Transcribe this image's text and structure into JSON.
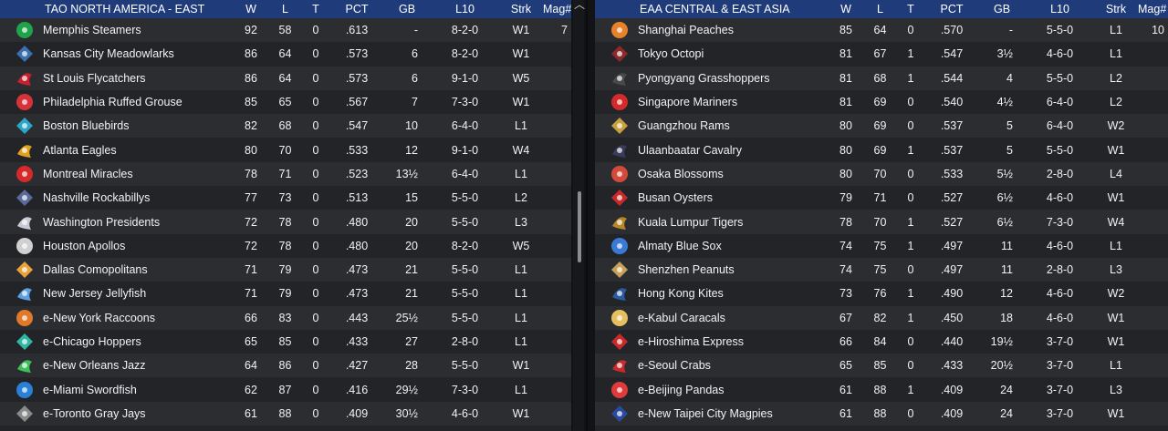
{
  "left": {
    "headers": [
      "TAO NORTH AMERICA - EAST",
      "W",
      "L",
      "T",
      "PCT",
      "GB",
      "L10",
      "Strk",
      "Mag#"
    ],
    "rows": [
      {
        "team": "Memphis Steamers",
        "w": "92",
        "l": "58",
        "t": "0",
        "pct": ".613",
        "gb": "-",
        "l10": "8-2-0",
        "strk": "W1",
        "mag": "7",
        "logo_color": "#1fa34a",
        "logo_icon": "steamer-icon"
      },
      {
        "team": "Kansas City Meadowlarks",
        "w": "86",
        "l": "64",
        "t": "0",
        "pct": ".573",
        "gb": "6",
        "l10": "8-2-0",
        "strk": "W1",
        "mag": "",
        "logo_color": "#3b6fb0",
        "logo_icon": "meadowlark-icon"
      },
      {
        "team": "St Louis Flycatchers",
        "w": "86",
        "l": "64",
        "t": "0",
        "pct": ".573",
        "gb": "6",
        "l10": "9-1-0",
        "strk": "W5",
        "mag": "",
        "logo_color": "#c8202e",
        "logo_icon": "flycatcher-icon"
      },
      {
        "team": "Philadelphia Ruffed Grouse",
        "w": "85",
        "l": "65",
        "t": "0",
        "pct": ".567",
        "gb": "7",
        "l10": "7-3-0",
        "strk": "W1",
        "mag": "",
        "logo_color": "#d6323a",
        "logo_icon": "grouse-icon"
      },
      {
        "team": "Boston Bluebirds",
        "w": "82",
        "l": "68",
        "t": "0",
        "pct": ".547",
        "gb": "10",
        "l10": "6-4-0",
        "strk": "L1",
        "mag": "",
        "logo_color": "#2aa6c8",
        "logo_icon": "bluebird-icon"
      },
      {
        "team": "Atlanta Eagles",
        "w": "80",
        "l": "70",
        "t": "0",
        "pct": ".533",
        "gb": "12",
        "l10": "9-1-0",
        "strk": "W4",
        "mag": "",
        "logo_color": "#e0a020",
        "logo_icon": "eagle-icon"
      },
      {
        "team": "Montreal Miracles",
        "w": "78",
        "l": "71",
        "t": "0",
        "pct": ".523",
        "gb": "13½",
        "l10": "6-4-0",
        "strk": "L1",
        "mag": "",
        "logo_color": "#d42a2a",
        "logo_icon": "m-icon"
      },
      {
        "team": "Nashville Rockabillys",
        "w": "77",
        "l": "73",
        "t": "0",
        "pct": ".513",
        "gb": "15",
        "l10": "5-5-0",
        "strk": "L2",
        "mag": "",
        "logo_color": "#5a6a9a",
        "logo_icon": "guitar-icon"
      },
      {
        "team": "Washington Presidents",
        "w": "72",
        "l": "78",
        "t": "0",
        "pct": ".480",
        "gb": "20",
        "l10": "5-5-0",
        "strk": "L3",
        "mag": "",
        "logo_color": "#c9c9d6",
        "logo_icon": "presidents-icon"
      },
      {
        "team": "Houston Apollos",
        "w": "72",
        "l": "78",
        "t": "0",
        "pct": ".480",
        "gb": "20",
        "l10": "8-2-0",
        "strk": "W5",
        "mag": "",
        "logo_color": "#d0d0d0",
        "logo_icon": "apollo-icon"
      },
      {
        "team": "Dallas Comopolitans",
        "w": "71",
        "l": "79",
        "t": "0",
        "pct": ".473",
        "gb": "21",
        "l10": "5-5-0",
        "strk": "L1",
        "mag": "",
        "logo_color": "#e8a33a",
        "logo_icon": "star-icon"
      },
      {
        "team": "New Jersey Jellyfish",
        "w": "71",
        "l": "79",
        "t": "0",
        "pct": ".473",
        "gb": "21",
        "l10": "5-5-0",
        "strk": "L1",
        "mag": "",
        "logo_color": "#5aa0e0",
        "logo_icon": "jellyfish-icon"
      },
      {
        "team": "e-New York Raccoons",
        "w": "66",
        "l": "83",
        "t": "0",
        "pct": ".443",
        "gb": "25½",
        "l10": "5-5-0",
        "strk": "L1",
        "mag": "",
        "logo_color": "#e07a2a",
        "logo_icon": "raccoon-icon"
      },
      {
        "team": "e-Chicago Hoppers",
        "w": "65",
        "l": "85",
        "t": "0",
        "pct": ".433",
        "gb": "27",
        "l10": "2-8-0",
        "strk": "L1",
        "mag": "",
        "logo_color": "#2fb7a2",
        "logo_icon": "hopper-icon"
      },
      {
        "team": "e-New Orleans Jazz",
        "w": "64",
        "l": "86",
        "t": "0",
        "pct": ".427",
        "gb": "28",
        "l10": "5-5-0",
        "strk": "W1",
        "mag": "",
        "logo_color": "#3fbf5a",
        "logo_icon": "jazz-icon"
      },
      {
        "team": "e-Miami Swordfish",
        "w": "62",
        "l": "87",
        "t": "0",
        "pct": ".416",
        "gb": "29½",
        "l10": "7-3-0",
        "strk": "L1",
        "mag": "",
        "logo_color": "#2a7fd6",
        "logo_icon": "swordfish-icon"
      },
      {
        "team": "e-Toronto Gray Jays",
        "w": "61",
        "l": "88",
        "t": "0",
        "pct": ".409",
        "gb": "30½",
        "l10": "4-6-0",
        "strk": "W1",
        "mag": "",
        "logo_color": "#8a8a8a",
        "logo_icon": "grayjay-icon"
      }
    ]
  },
  "right": {
    "headers": [
      "EAA CENTRAL & EAST ASIA",
      "W",
      "L",
      "T",
      "PCT",
      "GB",
      "L10",
      "Strk",
      "Mag#"
    ],
    "rows": [
      {
        "team": "Shanghai Peaches",
        "w": "85",
        "l": "64",
        "t": "0",
        "pct": ".570",
        "gb": "-",
        "l10": "5-5-0",
        "strk": "L1",
        "mag": "10",
        "logo_color": "#e8822a",
        "logo_icon": "peach-icon"
      },
      {
        "team": "Tokyo Octopi",
        "w": "81",
        "l": "67",
        "t": "1",
        "pct": ".547",
        "gb": "3½",
        "l10": "4-6-0",
        "strk": "L1",
        "mag": "",
        "logo_color": "#8a2a2a",
        "logo_icon": "octopus-icon"
      },
      {
        "team": "Pyongyang Grasshoppers",
        "w": "81",
        "l": "68",
        "t": "1",
        "pct": ".544",
        "gb": "4",
        "l10": "5-5-0",
        "strk": "L2",
        "mag": "",
        "logo_color": "#4a4a4a",
        "logo_icon": "grasshopper-icon"
      },
      {
        "team": "Singapore Mariners",
        "w": "81",
        "l": "69",
        "t": "0",
        "pct": ".540",
        "gb": "4½",
        "l10": "6-4-0",
        "strk": "L2",
        "mag": "",
        "logo_color": "#d42a2a",
        "logo_icon": "mariner-icon"
      },
      {
        "team": "Guangzhou Rams",
        "w": "80",
        "l": "69",
        "t": "0",
        "pct": ".537",
        "gb": "5",
        "l10": "6-4-0",
        "strk": "W2",
        "mag": "",
        "logo_color": "#c9a040",
        "logo_icon": "ram-icon"
      },
      {
        "team": "Ulaanbaatar Cavalry",
        "w": "80",
        "l": "69",
        "t": "1",
        "pct": ".537",
        "gb": "5",
        "l10": "5-5-0",
        "strk": "W1",
        "mag": "",
        "logo_color": "#3a3a5a",
        "logo_icon": "cavalry-icon"
      },
      {
        "team": "Osaka Blossoms",
        "w": "80",
        "l": "70",
        "t": "0",
        "pct": ".533",
        "gb": "5½",
        "l10": "2-8-0",
        "strk": "L4",
        "mag": "",
        "logo_color": "#d44a3a",
        "logo_icon": "blossom-icon"
      },
      {
        "team": "Busan Oysters",
        "w": "79",
        "l": "71",
        "t": "0",
        "pct": ".527",
        "gb": "6½",
        "l10": "4-6-0",
        "strk": "W1",
        "mag": "",
        "logo_color": "#c82a2a",
        "logo_icon": "oyster-icon"
      },
      {
        "team": "Kuala Lumpur Tigers",
        "w": "78",
        "l": "70",
        "t": "1",
        "pct": ".527",
        "gb": "6½",
        "l10": "7-3-0",
        "strk": "W4",
        "mag": "",
        "logo_color": "#b8862a",
        "logo_icon": "tiger-icon"
      },
      {
        "team": "Almaty Blue Sox",
        "w": "74",
        "l": "75",
        "t": "1",
        "pct": ".497",
        "gb": "11",
        "l10": "4-6-0",
        "strk": "L1",
        "mag": "",
        "logo_color": "#3a7ad6",
        "logo_icon": "sox-icon"
      },
      {
        "team": "Shenzhen Peanuts",
        "w": "74",
        "l": "75",
        "t": "0",
        "pct": ".497",
        "gb": "11",
        "l10": "2-8-0",
        "strk": "L3",
        "mag": "",
        "logo_color": "#c8a05a",
        "logo_icon": "peanut-icon"
      },
      {
        "team": "Hong Kong Kites",
        "w": "73",
        "l": "76",
        "t": "1",
        "pct": ".490",
        "gb": "12",
        "l10": "4-6-0",
        "strk": "W2",
        "mag": "",
        "logo_color": "#2a5aa0",
        "logo_icon": "kite-icon"
      },
      {
        "team": "e-Kabul Caracals",
        "w": "67",
        "l": "82",
        "t": "1",
        "pct": ".450",
        "gb": "18",
        "l10": "4-6-0",
        "strk": "W1",
        "mag": "",
        "logo_color": "#e6c060",
        "logo_icon": "caracal-icon"
      },
      {
        "team": "e-Hiroshima Express",
        "w": "66",
        "l": "84",
        "t": "0",
        "pct": ".440",
        "gb": "19½",
        "l10": "3-7-0",
        "strk": "W1",
        "mag": "",
        "logo_color": "#c82a2a",
        "logo_icon": "express-icon"
      },
      {
        "team": "e-Seoul Crabs",
        "w": "65",
        "l": "85",
        "t": "0",
        "pct": ".433",
        "gb": "20½",
        "l10": "3-7-0",
        "strk": "L1",
        "mag": "",
        "logo_color": "#c82a2a",
        "logo_icon": "crab-icon"
      },
      {
        "team": "e-Beijing Pandas",
        "w": "61",
        "l": "88",
        "t": "1",
        "pct": ".409",
        "gb": "24",
        "l10": "3-7-0",
        "strk": "L3",
        "mag": "",
        "logo_color": "#e03a3a",
        "logo_icon": "panda-icon"
      },
      {
        "team": "e-New Taipei City Magpies",
        "w": "61",
        "l": "88",
        "t": "0",
        "pct": ".409",
        "gb": "24",
        "l10": "3-7-0",
        "strk": "W1",
        "mag": "",
        "logo_color": "#2a4aa0",
        "logo_icon": "magpie-icon"
      }
    ]
  },
  "colors": {
    "header_bg": "#1f3b7a",
    "row_odd": "#2b2d31",
    "row_even": "#222428",
    "text": "#f2f2f2"
  }
}
